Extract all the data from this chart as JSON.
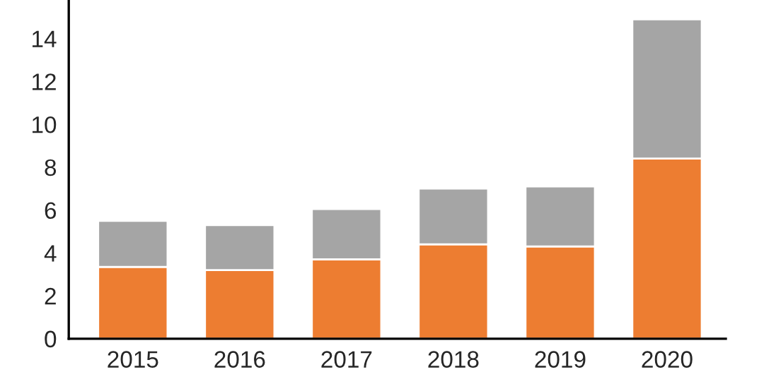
{
  "chart_data": {
    "type": "bar",
    "stacked": true,
    "categories": [
      "2015",
      "2016",
      "2017",
      "2018",
      "2019",
      "2020"
    ],
    "series": [
      {
        "color": "#ed7d31",
        "values": [
          3.35,
          3.2,
          3.7,
          4.4,
          4.3,
          8.4
        ]
      },
      {
        "color": "#a5a5a5",
        "values": [
          2.15,
          2.1,
          2.35,
          2.6,
          2.8,
          6.5
        ]
      }
    ],
    "ylim": [
      0,
      15.8
    ],
    "yticks": [
      0,
      2,
      4,
      6,
      8,
      10,
      12,
      14
    ],
    "grid": false,
    "legend": false
  }
}
